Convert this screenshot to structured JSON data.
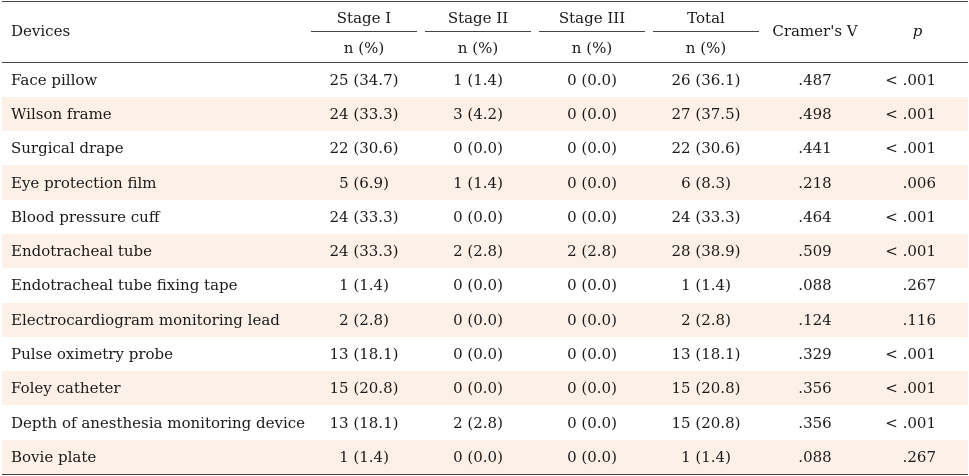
{
  "columns": {
    "devices": "Devices",
    "stage1": "Stage I",
    "stage2": "Stage II",
    "stage3": "Stage III",
    "total": "Total",
    "sub": "n (%)",
    "cramers_v": "Cramer's V",
    "p": "p"
  },
  "rows": [
    {
      "device": "Face pillow",
      "s1": "25 (34.7)",
      "s2": "1 (1.4)",
      "s3": "0 (0.0)",
      "total": "26 (36.1)",
      "v": ".487",
      "p": "< .001"
    },
    {
      "device": "Wilson frame",
      "s1": "24 (33.3)",
      "s2": "3 (4.2)",
      "s3": "0 (0.0)",
      "total": "27 (37.5)",
      "v": ".498",
      "p": "< .001"
    },
    {
      "device": "Surgical drape",
      "s1": "22 (30.6)",
      "s2": "0 (0.0)",
      "s3": "0 (0.0)",
      "total": "22 (30.6)",
      "v": ".441",
      "p": "< .001"
    },
    {
      "device": "Eye protection film",
      "s1": "5 (6.9)",
      "s2": "1 (1.4)",
      "s3": "0 (0.0)",
      "total": "6 (8.3)",
      "v": ".218",
      "p": ".006"
    },
    {
      "device": "Blood pressure cuff",
      "s1": "24 (33.3)",
      "s2": "0 (0.0)",
      "s3": "0 (0.0)",
      "total": "24 (33.3)",
      "v": ".464",
      "p": "< .001"
    },
    {
      "device": "Endotracheal tube",
      "s1": "24 (33.3)",
      "s2": "2 (2.8)",
      "s3": "2 (2.8)",
      "total": "28 (38.9)",
      "v": ".509",
      "p": "< .001"
    },
    {
      "device": "Endotracheal tube fixing tape",
      "s1": "1 (1.4)",
      "s2": "0 (0.0)",
      "s3": "0 (0.0)",
      "total": "1 (1.4)",
      "v": ".088",
      "p": ".267"
    },
    {
      "device": "Electrocardiogram monitoring lead",
      "s1": "2 (2.8)",
      "s2": "0 (0.0)",
      "s3": "0 (0.0)",
      "total": "2 (2.8)",
      "v": ".124",
      "p": ".116"
    },
    {
      "device": "Pulse oximetry probe",
      "s1": "13 (18.1)",
      "s2": "0 (0.0)",
      "s3": "0 (0.0)",
      "total": "13 (18.1)",
      "v": ".329",
      "p": "< .001"
    },
    {
      "device": "Foley catheter",
      "s1": "15 (20.8)",
      "s2": "0 (0.0)",
      "s3": "0 (0.0)",
      "total": "15 (20.8)",
      "v": ".356",
      "p": "< .001"
    },
    {
      "device": "Depth of anesthesia monitoring device",
      "s1": "13 (18.1)",
      "s2": "2 (2.8)",
      "s3": "0 (0.0)",
      "total": "15 (20.8)",
      "v": ".356",
      "p": "< .001"
    },
    {
      "device": "Bovie plate",
      "s1": "1 (1.4)",
      "s2": "0 (0.0)",
      "s3": "0 (0.0)",
      "total": "1 (1.4)",
      "v": ".088",
      "p": ".267"
    }
  ]
}
